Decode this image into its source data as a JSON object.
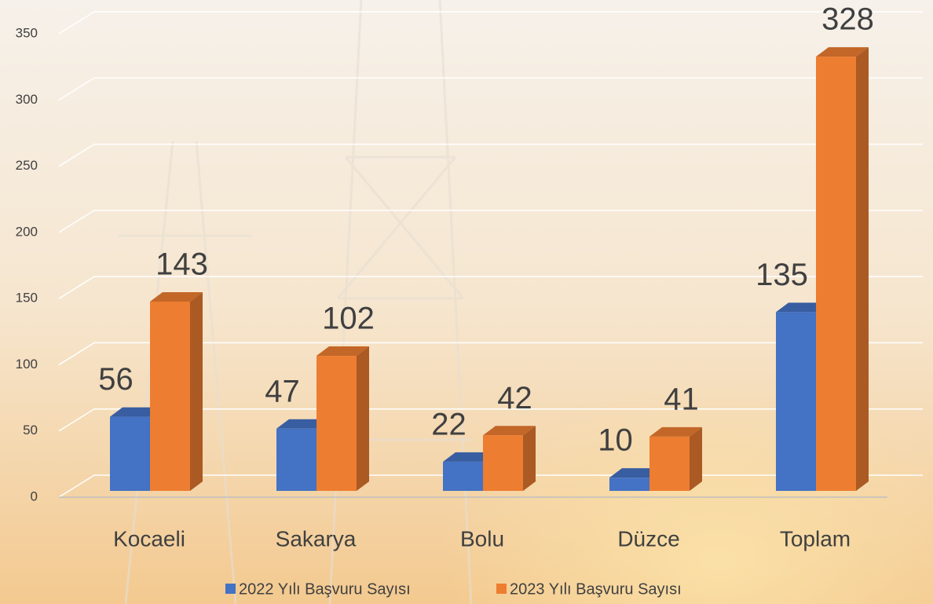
{
  "chart_data": {
    "type": "bar3d",
    "categories": [
      "Kocaeli",
      "Sakarya",
      "Bolu",
      "Düzce",
      "Toplam"
    ],
    "series": [
      {
        "name": "2022 Yılı Başvuru Sayısı",
        "color": "#4472c4",
        "values": [
          56,
          47,
          22,
          10,
          135
        ]
      },
      {
        "name": "2023 Yılı Başvuru Sayısı",
        "color": "#ed7d31",
        "values": [
          143,
          102,
          42,
          41,
          328
        ]
      }
    ],
    "ylim": [
      0,
      350
    ],
    "yticks": [
      0,
      50,
      100,
      150,
      200,
      250,
      300,
      350
    ],
    "grid": true,
    "legend": "bottom"
  }
}
